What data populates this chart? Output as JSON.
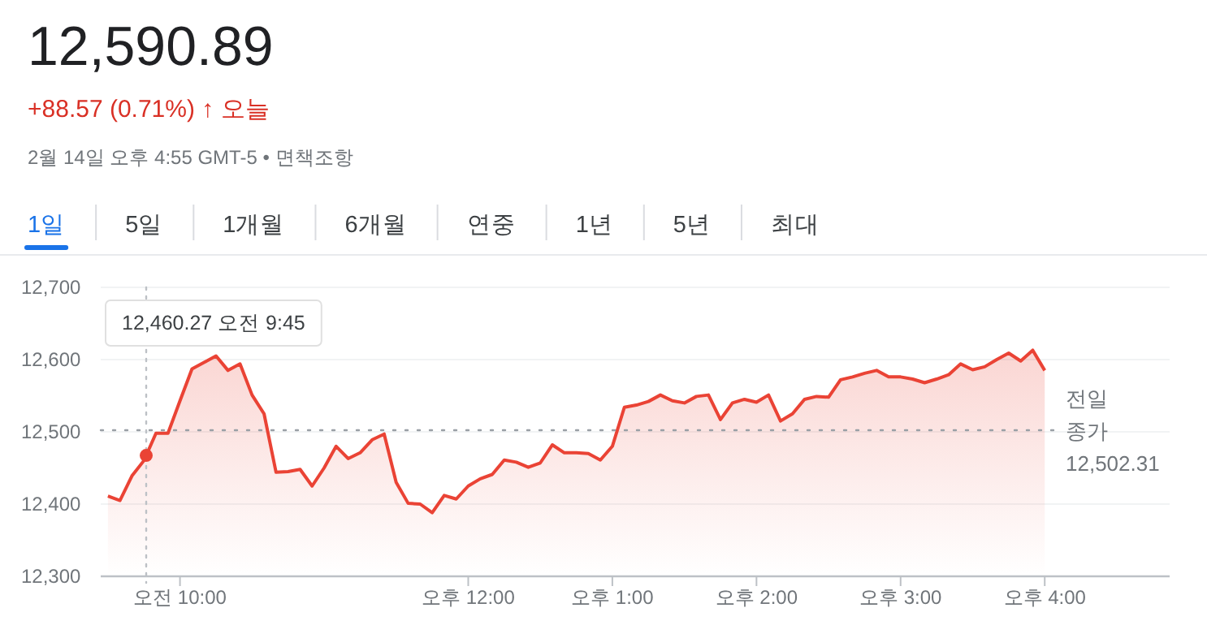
{
  "chart_data": {
    "type": "area",
    "title": "12,590.89",
    "subtitle": "+88.57 (0.71%) ↑ 오늘",
    "annotations": [
      "2월 14일 오후 4:55 GMT-5 • 면책조항",
      "1일",
      "5일",
      "1개월",
      "6개월",
      "연중",
      "1년",
      "5년",
      "최대",
      "12,460.27 오전 9:45"
    ],
    "categories": [
      null,
      null,
      null,
      null,
      null,
      null,
      "오전 10:00",
      null,
      null,
      null,
      null,
      null,
      null,
      null,
      null,
      null,
      null,
      null,
      null,
      null,
      null,
      null,
      null,
      null,
      null,
      null,
      null,
      null,
      null,
      null,
      "오후 12:00",
      null,
      null,
      null,
      null,
      null,
      null,
      null,
      null,
      null,
      null,
      null,
      "오후 1:00",
      null,
      null,
      null,
      null,
      null,
      null,
      null,
      null,
      null,
      null,
      null,
      "오후 2:00",
      null,
      null,
      null,
      null,
      null,
      null,
      null,
      null,
      null,
      null,
      null,
      "오후 3:00",
      null,
      null,
      null,
      null,
      null,
      null,
      null,
      null,
      null,
      null,
      null,
      "오후 4:00"
    ],
    "series": [
      {
        "color": "#ea4335",
        "values": [
          12411,
          12405,
          12439,
          12460.27,
          12498,
          12498,
          12543,
          12587,
          12596,
          12605,
          12585,
          12594,
          12551,
          12525,
          12444,
          12445,
          12448,
          12425,
          12450,
          12480,
          12463,
          12471,
          12489,
          12497,
          12430,
          12401,
          12400,
          12388,
          12412,
          12407,
          12425,
          12435,
          12441,
          12461,
          12458,
          12451,
          12457,
          12482,
          12471,
          12471,
          12470,
          12461,
          12480,
          12534,
          12537,
          12542,
          12551,
          12543,
          12540,
          12549,
          12551,
          12517,
          12540,
          12545,
          12541,
          12551,
          12515,
          12525,
          12545,
          12549,
          12548,
          12572,
          12576,
          12581,
          12585,
          12576,
          12576,
          12573,
          12568,
          12573,
          12579,
          12594,
          12586,
          12590,
          12600,
          12609,
          12598,
          12613,
          12585
        ]
      }
    ],
    "ylim": [
      12300,
      12700
    ],
    "yticks": [
      {
        "value": 12300,
        "label": "12,300"
      },
      {
        "value": 12400,
        "label": "12,400"
      },
      {
        "value": 12500,
        "label": "12,500"
      },
      {
        "value": 12600,
        "label": "12,600"
      },
      {
        "value": 12700,
        "label": "12,700"
      }
    ],
    "grid": "y",
    "ref_lines": [
      {
        "axis": "y",
        "value": 12502.31,
        "label": "전일\n종가\n12,502.31",
        "color": "#9aa0a6",
        "line_style": "dotted"
      }
    ]
  }
}
